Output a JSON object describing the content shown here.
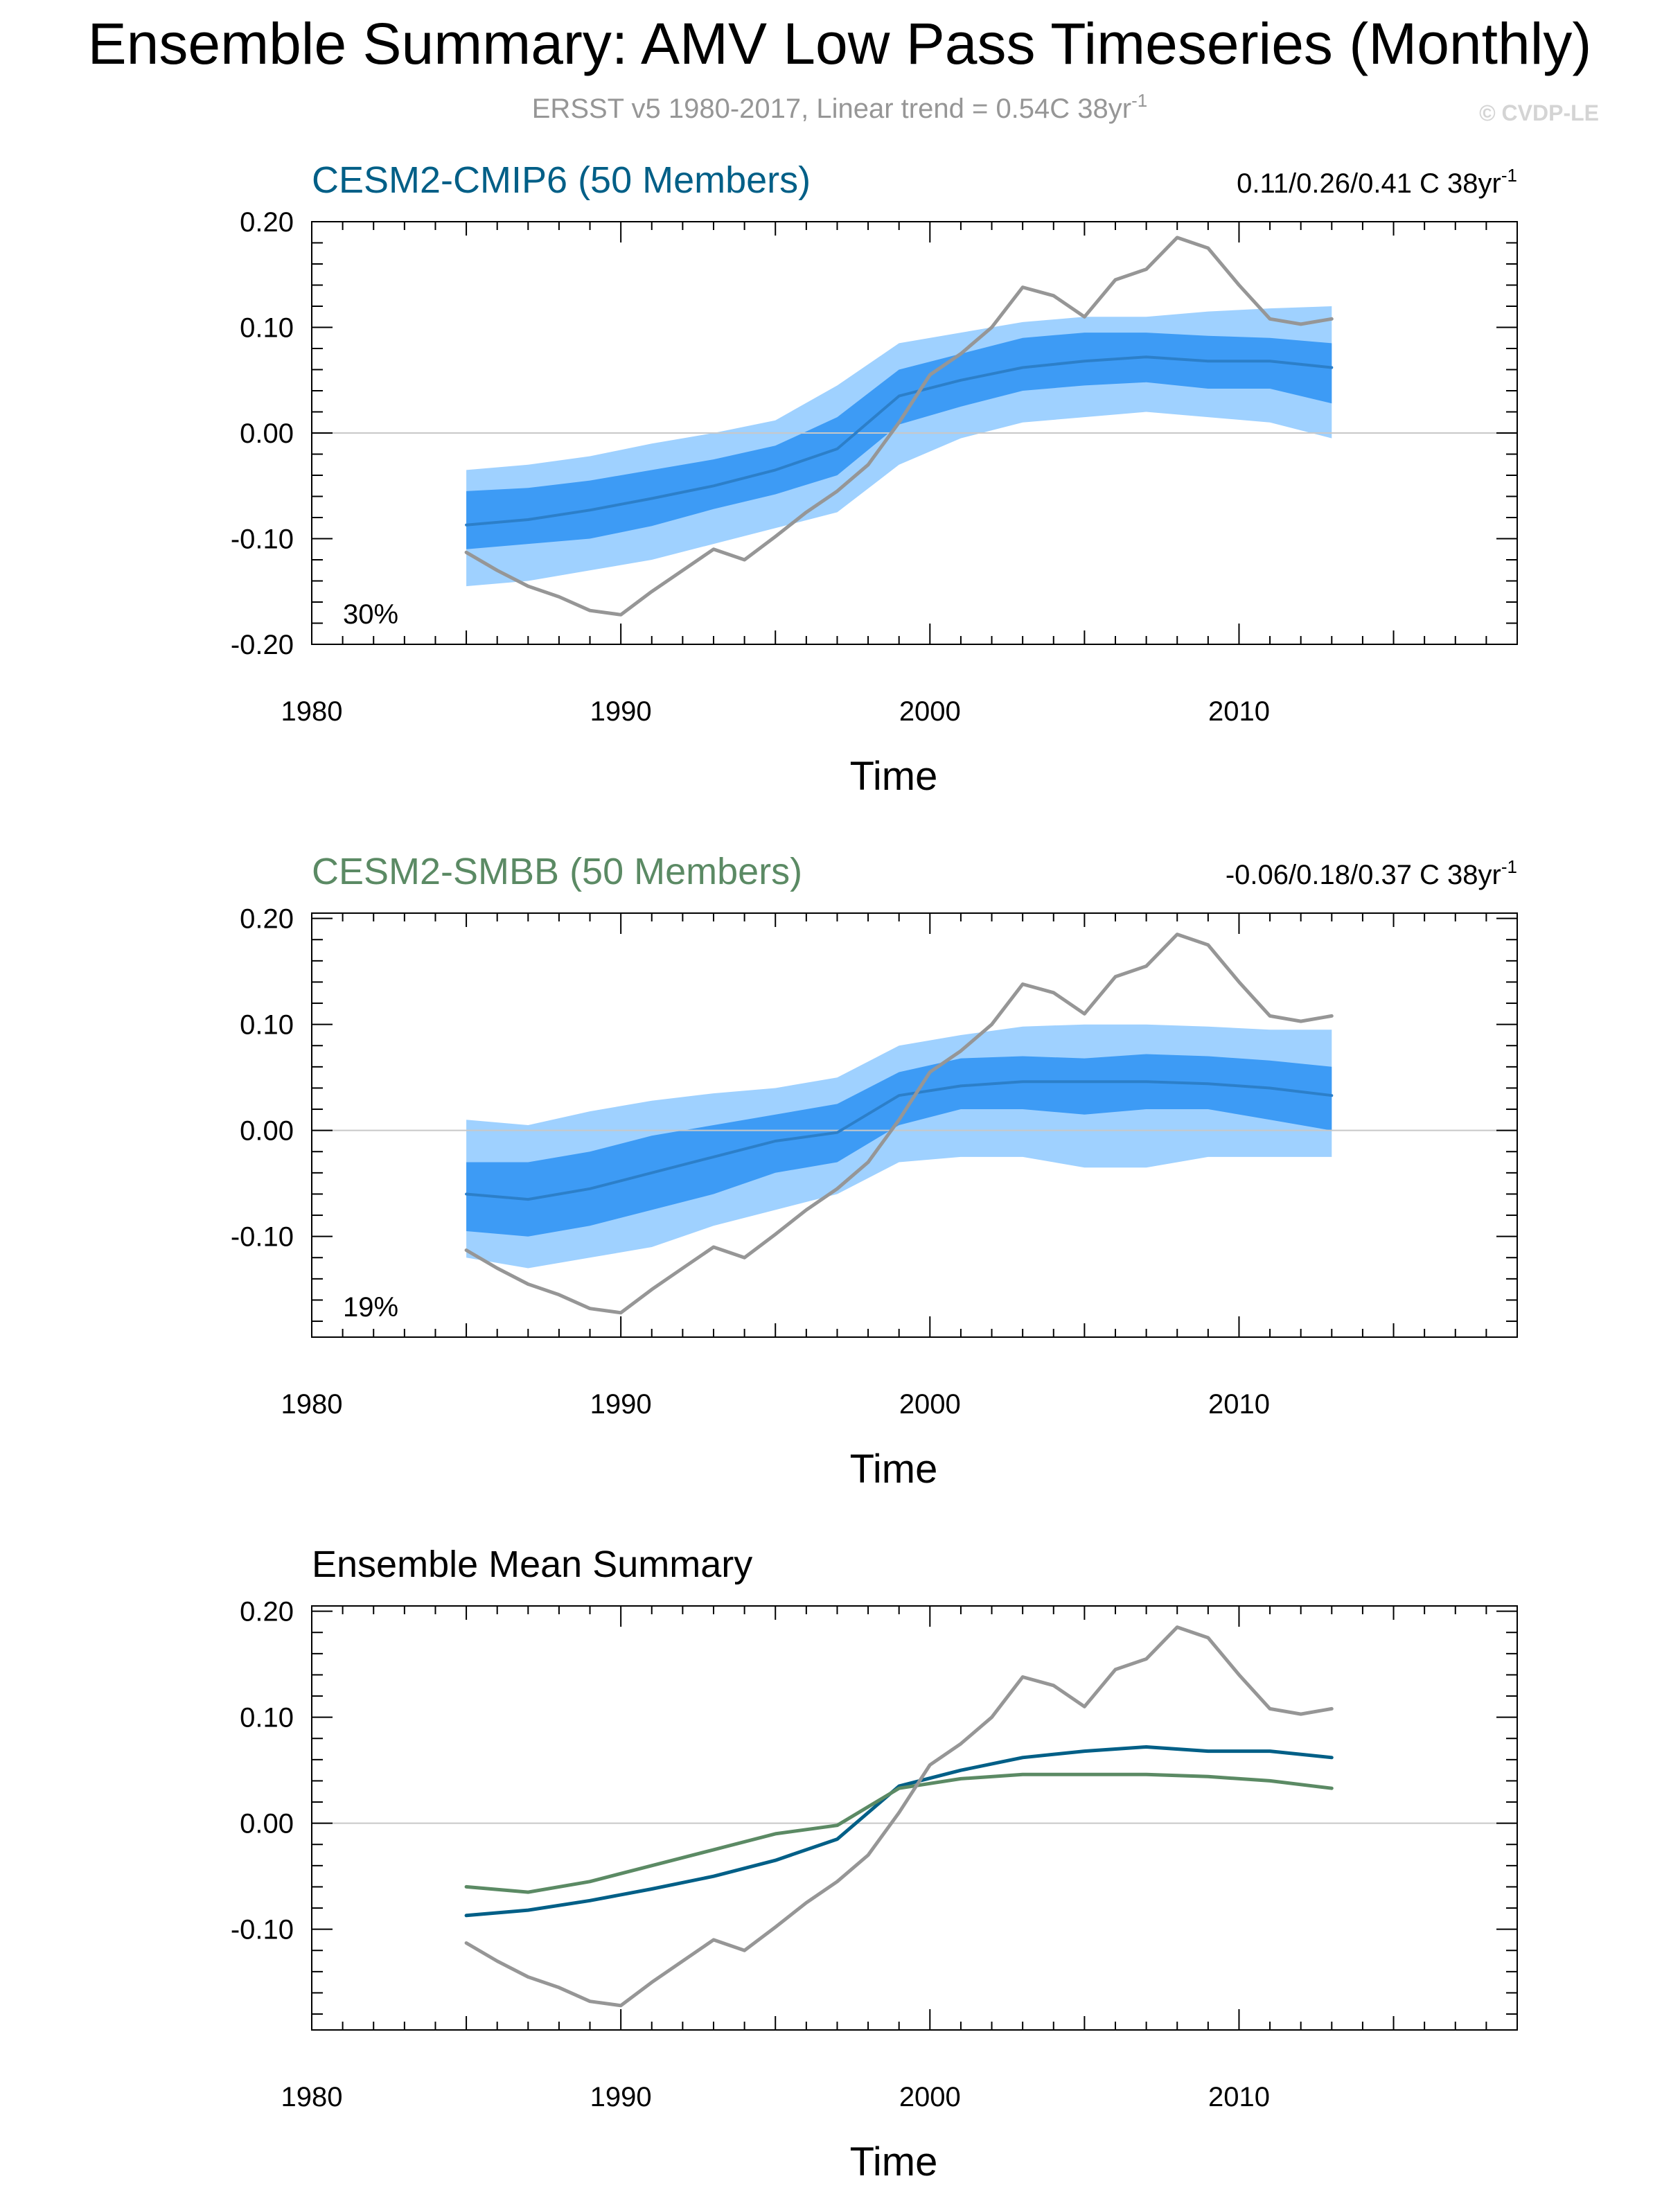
{
  "header": {
    "title": "Ensemble Summary: AMV Low Pass Timeseries (Monthly)",
    "subtitle_main": "ERSST v5 1980-2017, Linear trend = 0.54C 38yr",
    "subtitle_sup": "-1",
    "watermark": "© CVDP-LE"
  },
  "colors": {
    "cmip6": "#005f87",
    "smbb": "#5b8a64",
    "obs": "#969696",
    "outer_band": "#9fd1ff",
    "inner_band": "#3d9bf5",
    "axis": "#000000",
    "zero_line": "#c8c8c8"
  },
  "chart_data": [
    {
      "type": "area",
      "title": "CESM2-CMIP6 (50 Members)",
      "title_color": "#005f87",
      "trend_label": "0.11/0.26/0.41 C 38yr",
      "trend_sup": "-1",
      "corner_label": "30%",
      "xlabel": "Time",
      "ylabel": "",
      "xlim": [
        1980,
        2019
      ],
      "ylim": [
        -0.2,
        0.2
      ],
      "xticks": [
        1980,
        1990,
        2000,
        2010
      ],
      "ytick_values": [
        -0.2,
        -0.1,
        0.0,
        0.1,
        0.2
      ],
      "ytick_labels": [
        "-0.20",
        "-0.10",
        "0.00",
        "0.10",
        "0.20"
      ],
      "x": [
        1985,
        1987,
        1989,
        1991,
        1993,
        1995,
        1997,
        1999,
        2001,
        2003,
        2005,
        2007,
        2009,
        2011,
        2013
      ],
      "outer_upper": [
        -0.035,
        -0.03,
        -0.022,
        -0.01,
        0.0,
        0.012,
        0.045,
        0.085,
        0.095,
        0.105,
        0.11,
        0.11,
        0.115,
        0.118,
        0.12
      ],
      "inner_upper": [
        -0.055,
        -0.052,
        -0.045,
        -0.035,
        -0.025,
        -0.012,
        0.015,
        0.06,
        0.075,
        0.09,
        0.095,
        0.095,
        0.092,
        0.09,
        0.085
      ],
      "mean": [
        -0.087,
        -0.082,
        -0.073,
        -0.062,
        -0.05,
        -0.035,
        -0.015,
        0.035,
        0.05,
        0.062,
        0.068,
        0.072,
        0.068,
        0.068,
        0.062
      ],
      "inner_lower": [
        -0.11,
        -0.105,
        -0.1,
        -0.088,
        -0.072,
        -0.058,
        -0.04,
        0.008,
        0.025,
        0.04,
        0.045,
        0.048,
        0.042,
        0.042,
        0.028
      ],
      "outer_lower": [
        -0.145,
        -0.14,
        -0.13,
        -0.12,
        -0.105,
        -0.09,
        -0.075,
        -0.03,
        -0.005,
        0.01,
        0.015,
        0.02,
        0.015,
        0.01,
        -0.005
      ],
      "obs_x": [
        1985,
        1986,
        1987,
        1988,
        1989,
        1990,
        1991,
        1992,
        1993,
        1994,
        1995,
        1996,
        1997,
        1998,
        1999,
        2000,
        2001,
        2002,
        2003,
        2004,
        2005,
        2006,
        2007,
        2008,
        2009,
        2010,
        2011,
        2012,
        2013
      ],
      "obs": [
        -0.113,
        -0.13,
        -0.145,
        -0.155,
        -0.168,
        -0.172,
        -0.15,
        -0.13,
        -0.11,
        -0.12,
        -0.098,
        -0.075,
        -0.055,
        -0.03,
        0.01,
        0.055,
        0.075,
        0.1,
        0.138,
        0.13,
        0.11,
        0.145,
        0.155,
        0.185,
        0.175,
        0.14,
        0.108,
        0.103,
        0.108
      ],
      "lines": [
        {
          "name": "ensemble-mean",
          "key": "mean",
          "color": "#2c7fc9",
          "width": 4
        },
        {
          "name": "observations",
          "key": "obs",
          "color": "#969696",
          "width": 5
        }
      ]
    },
    {
      "type": "area",
      "title": "CESM2-SMBB (50 Members)",
      "title_color": "#5b8a64",
      "trend_label": "-0.06/0.18/0.37 C 38yr",
      "trend_sup": "-1",
      "corner_label": "19%",
      "xlabel": "Time",
      "ylabel": "",
      "xlim": [
        1980,
        2019
      ],
      "ylim": [
        -0.195,
        0.205
      ],
      "xticks": [
        1980,
        1990,
        2000,
        2010
      ],
      "ytick_values": [
        -0.1,
        0.0,
        0.1,
        0.2
      ],
      "ytick_labels": [
        "-0.10",
        "0.00",
        "0.10",
        "0.20"
      ],
      "x": [
        1985,
        1987,
        1989,
        1991,
        1993,
        1995,
        1997,
        1999,
        2001,
        2003,
        2005,
        2007,
        2009,
        2011,
        2013
      ],
      "outer_upper": [
        0.01,
        0.005,
        0.018,
        0.028,
        0.035,
        0.04,
        0.05,
        0.08,
        0.09,
        0.098,
        0.1,
        0.1,
        0.098,
        0.095,
        0.095
      ],
      "inner_upper": [
        -0.03,
        -0.03,
        -0.02,
        -0.005,
        0.005,
        0.015,
        0.025,
        0.055,
        0.068,
        0.07,
        0.068,
        0.072,
        0.07,
        0.066,
        0.06
      ],
      "mean": [
        -0.06,
        -0.065,
        -0.055,
        -0.04,
        -0.025,
        -0.01,
        -0.002,
        0.033,
        0.042,
        0.046,
        0.046,
        0.046,
        0.044,
        0.04,
        0.033
      ],
      "inner_lower": [
        -0.095,
        -0.1,
        -0.09,
        -0.075,
        -0.06,
        -0.04,
        -0.03,
        0.005,
        0.02,
        0.02,
        0.015,
        0.02,
        0.02,
        0.01,
        0.0
      ],
      "outer_lower": [
        -0.12,
        -0.13,
        -0.12,
        -0.11,
        -0.09,
        -0.075,
        -0.06,
        -0.03,
        -0.025,
        -0.025,
        -0.035,
        -0.035,
        -0.025,
        -0.025,
        -0.025
      ],
      "obs_x": [
        1985,
        1986,
        1987,
        1988,
        1989,
        1990,
        1991,
        1992,
        1993,
        1994,
        1995,
        1996,
        1997,
        1998,
        1999,
        2000,
        2001,
        2002,
        2003,
        2004,
        2005,
        2006,
        2007,
        2008,
        2009,
        2010,
        2011,
        2012,
        2013
      ],
      "obs": [
        -0.113,
        -0.13,
        -0.145,
        -0.155,
        -0.168,
        -0.172,
        -0.15,
        -0.13,
        -0.11,
        -0.12,
        -0.098,
        -0.075,
        -0.055,
        -0.03,
        0.01,
        0.055,
        0.075,
        0.1,
        0.138,
        0.13,
        0.11,
        0.145,
        0.155,
        0.185,
        0.175,
        0.14,
        0.108,
        0.103,
        0.108
      ],
      "lines": [
        {
          "name": "ensemble-mean",
          "key": "mean",
          "color": "#2c7fc9",
          "width": 4
        },
        {
          "name": "observations",
          "key": "obs",
          "color": "#969696",
          "width": 5
        }
      ]
    },
    {
      "type": "line",
      "title": "Ensemble Mean Summary",
      "title_color": "#000000",
      "trend_label": "",
      "trend_sup": "",
      "corner_label": "",
      "xlabel": "Time",
      "ylabel": "",
      "xlim": [
        1980,
        2019
      ],
      "ylim": [
        -0.195,
        0.205
      ],
      "xticks": [
        1980,
        1990,
        2000,
        2010
      ],
      "ytick_values": [
        -0.1,
        0.0,
        0.1,
        0.2
      ],
      "ytick_labels": [
        "-0.10",
        "0.00",
        "0.10",
        "0.20"
      ],
      "x": [
        1985,
        1987,
        1989,
        1991,
        1993,
        1995,
        1997,
        1999,
        2001,
        2003,
        2005,
        2007,
        2009,
        2011,
        2013
      ],
      "mean_cmip6": [
        -0.087,
        -0.082,
        -0.073,
        -0.062,
        -0.05,
        -0.035,
        -0.015,
        0.035,
        0.05,
        0.062,
        0.068,
        0.072,
        0.068,
        0.068,
        0.062
      ],
      "mean_smbb": [
        -0.06,
        -0.065,
        -0.055,
        -0.04,
        -0.025,
        -0.01,
        -0.002,
        0.033,
        0.042,
        0.046,
        0.046,
        0.046,
        0.044,
        0.04,
        0.033
      ],
      "obs_x": [
        1985,
        1986,
        1987,
        1988,
        1989,
        1990,
        1991,
        1992,
        1993,
        1994,
        1995,
        1996,
        1997,
        1998,
        1999,
        2000,
        2001,
        2002,
        2003,
        2004,
        2005,
        2006,
        2007,
        2008,
        2009,
        2010,
        2011,
        2012,
        2013
      ],
      "obs": [
        -0.113,
        -0.13,
        -0.145,
        -0.155,
        -0.168,
        -0.172,
        -0.15,
        -0.13,
        -0.11,
        -0.12,
        -0.098,
        -0.075,
        -0.055,
        -0.03,
        0.01,
        0.055,
        0.075,
        0.1,
        0.138,
        0.13,
        0.11,
        0.145,
        0.155,
        0.185,
        0.175,
        0.14,
        0.108,
        0.103,
        0.108
      ],
      "lines": [
        {
          "name": "cmip6-ensemble-mean",
          "key": "mean_cmip6",
          "color": "#005f87",
          "width": 5
        },
        {
          "name": "smbb-ensemble-mean",
          "key": "mean_smbb",
          "color": "#5b8a64",
          "width": 5
        },
        {
          "name": "observations",
          "key": "obs",
          "color": "#969696",
          "width": 5
        }
      ]
    }
  ]
}
